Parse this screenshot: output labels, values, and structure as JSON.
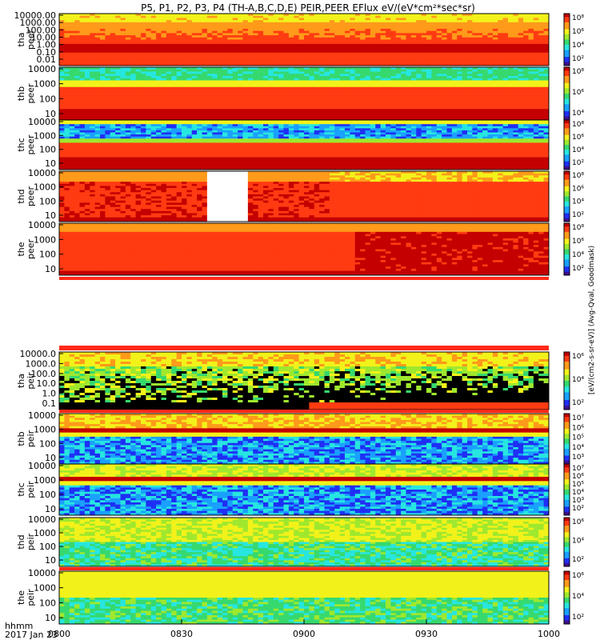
{
  "chart_data": {
    "type": "heatmap",
    "title": "P5, P1, P2, P3, P4 (TH-A,B,C,D,E) PEIR,PEER EFlux eV/(eV*cm²*sec*sr)",
    "xlabel": "hhmm",
    "date_label": "2017 Jan 23",
    "x_ticks": [
      "0800",
      "0830",
      "0900",
      "0930",
      "1000"
    ],
    "x_range": [
      "0800",
      "1000"
    ],
    "colorbar_label": "[eV/(cm2-s-sr-eV)] (Avg-Qval, Goodmask)",
    "panels": [
      {
        "probe": "tha",
        "species": "peer",
        "yscale": "log",
        "y_ticks": [
          "10000.00",
          "1000.00",
          "100.00",
          "10.00",
          "1.00",
          "0.10",
          "0.01"
        ],
        "colorbar_ticks": [
          "10⁸",
          "10⁶",
          "10⁴",
          "10²"
        ]
      },
      {
        "probe": "thb",
        "species": "peer",
        "yscale": "log",
        "y_ticks": [
          "10000",
          "1000",
          "100",
          "10"
        ],
        "colorbar_ticks": [
          "10⁸",
          "10⁶",
          "10⁴"
        ]
      },
      {
        "probe": "thc",
        "species": "peer",
        "yscale": "log",
        "y_ticks": [
          "10000",
          "1000",
          "100",
          "10"
        ],
        "colorbar_ticks": [
          "10⁸",
          "10⁶",
          "10⁴",
          "10²"
        ]
      },
      {
        "probe": "thd",
        "species": "peer",
        "yscale": "log",
        "y_ticks": [
          "10000",
          "1000",
          "100",
          "10"
        ],
        "colorbar_ticks": [
          "10⁸",
          "10⁶",
          "10⁴",
          "10²"
        ]
      },
      {
        "probe": "the",
        "species": "peer",
        "yscale": "log",
        "y_ticks": [
          "10000",
          "1000",
          "100",
          "10"
        ],
        "colorbar_ticks": [
          "10⁸",
          "10⁶",
          "10⁴",
          "10²"
        ]
      },
      {
        "probe": "tha",
        "species": "peir",
        "yscale": "log",
        "y_ticks": [
          "10000.0",
          "1000.0",
          "100.0",
          "10.0",
          "1.0",
          "0.1"
        ],
        "colorbar_ticks": [
          "10⁶",
          "10⁴",
          "10²"
        ]
      },
      {
        "probe": "thb",
        "species": "peir",
        "yscale": "log",
        "y_ticks": [
          "10000",
          "1000",
          "100",
          "10"
        ],
        "colorbar_ticks": [
          "10⁷",
          "10⁶",
          "10⁵",
          "10⁴",
          "10³"
        ]
      },
      {
        "probe": "thc",
        "species": "peir",
        "yscale": "log",
        "y_ticks": [
          "10000",
          "1000",
          "100",
          "10"
        ],
        "colorbar_ticks": [
          "10⁷",
          "10⁶",
          "10⁵",
          "10⁴",
          "10³",
          "10²"
        ]
      },
      {
        "probe": "thd",
        "species": "peir",
        "yscale": "log",
        "y_ticks": [
          "10000",
          "1000",
          "100",
          "10"
        ],
        "colorbar_ticks": [
          "10⁶",
          "10⁴",
          "10²"
        ]
      },
      {
        "probe": "the",
        "species": "peir",
        "yscale": "log",
        "y_ticks": [
          "10000",
          "1000",
          "100",
          "10"
        ],
        "colorbar_ticks": [
          "10⁶",
          "10⁴",
          "10²"
        ]
      }
    ],
    "colorscale": [
      "#3d0f8f",
      "#1f2ff5",
      "#1aa0ff",
      "#27e6e0",
      "#36d96e",
      "#9fe82e",
      "#f2f21a",
      "#ff9a1a",
      "#ff3b12",
      "#c40000"
    ]
  }
}
